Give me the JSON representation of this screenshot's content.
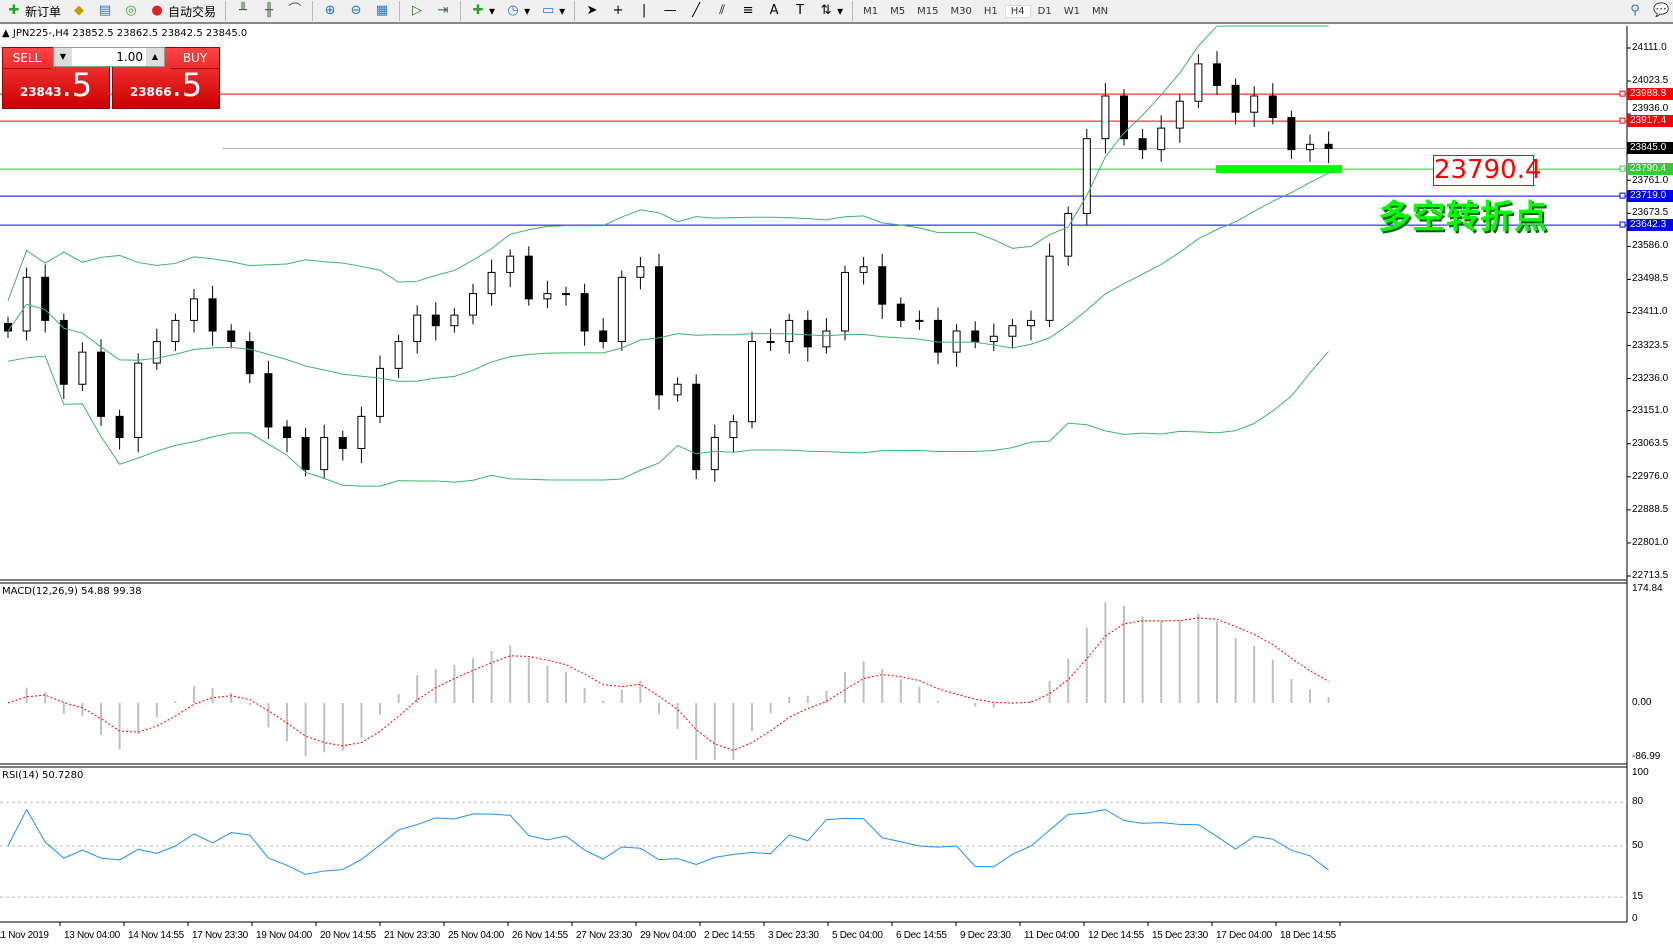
{
  "toolbar": {
    "new_order": "新订单",
    "auto_trading": "自动交易",
    "timeframes": [
      "M1",
      "M5",
      "M15",
      "M30",
      "H1",
      "H4",
      "D1",
      "W1",
      "MN"
    ],
    "active_timeframe": "H4"
  },
  "chart": {
    "title": "JPN225-,H4  23852.5 23862.5 23842.5 23845.0",
    "sell_label": "SELL",
    "buy_label": "BUY",
    "lot": "1.00",
    "sell_price_main": "23843",
    "sell_price_frac": ".5",
    "buy_price_main": "23866",
    "buy_price_frac": ".5",
    "annotation_price": "23790.4",
    "annotation_text": "多空转折点"
  },
  "price_axis": [
    "24111.0",
    "24023.5",
    "23936.0",
    "23761.0",
    "23673.5",
    "23586.0",
    "23498.5",
    "23411.0",
    "23323.5",
    "23236.0",
    "23151.0",
    "23063.5",
    "22976.0",
    "22888.5",
    "22801.0",
    "22713.5"
  ],
  "levels": [
    {
      "price": "23988.8",
      "color": "#ff0000"
    },
    {
      "price": "23917.4",
      "color": "#ff0000"
    },
    {
      "price": "23845.0",
      "color": "#000000"
    },
    {
      "price": "23790.4",
      "color": "#33cc33"
    },
    {
      "price": "23719.0",
      "color": "#0000ff"
    },
    {
      "price": "23642.3",
      "color": "#0000ff"
    }
  ],
  "macd": {
    "label": "MACD(12,26,9) 54.88 99.38",
    "axis": [
      "174.84",
      "0.00",
      "-86.99"
    ]
  },
  "rsi": {
    "label": "RSI(14) 50.7280",
    "axis": [
      "100",
      "80",
      "50",
      "15",
      "0"
    ]
  },
  "time_axis": [
    "11 Nov 2019",
    "13 Nov 04:00",
    "14 Nov 14:55",
    "17 Nov 23:30",
    "19 Nov 04:00",
    "20 Nov 14:55",
    "21 Nov 23:30",
    "25 Nov 04:00",
    "26 Nov 14:55",
    "27 Nov 23:30",
    "29 Nov 04:00",
    "2 Dec 14:55",
    "3 Dec 23:30",
    "5 Dec 04:00",
    "6 Dec 14:55",
    "9 Dec 23:30",
    "11 Dec 04:00",
    "12 Dec 14:55",
    "15 Dec 23:30",
    "17 Dec 04:00",
    "18 Dec 14:55"
  ],
  "chart_data": {
    "type": "candlestick",
    "symbol": "JPN225-",
    "timeframe": "H4",
    "ylim": [
      22713.5,
      24111.0
    ],
    "closes": [
      23362,
      23504,
      23390,
      23221,
      23306,
      23136,
      23080,
      23277,
      23334,
      23390,
      23447,
      23362,
      23334,
      23249,
      23108,
      23080,
      22995,
      23080,
      23051,
      23136,
      23263,
      23334,
      23404,
      23376,
      23404,
      23461,
      23517,
      23560,
      23447,
      23461,
      23461,
      23362,
      23334,
      23504,
      23532,
      23193,
      23221,
      22995,
      23080,
      23122,
      23334,
      23334,
      23390,
      23320,
      23362,
      23517,
      23532,
      23433,
      23390,
      23390,
      23306,
      23362,
      23334,
      23348,
      23376,
      23390,
      23560,
      23673,
      23871,
      23984,
      23871,
      23842,
      23899,
      23970,
      24069,
      24012,
      23941,
      23984,
      23927,
      23842,
      23856,
      23845
    ],
    "indicators": [
      "Bollinger Bands",
      "MACD(12,26,9)",
      "RSI(14)"
    ],
    "colors": {
      "bands": "#3cb371",
      "signal": "#ff0000",
      "histogram": "#c0c0c0",
      "rsi": "#1e90ff"
    }
  }
}
